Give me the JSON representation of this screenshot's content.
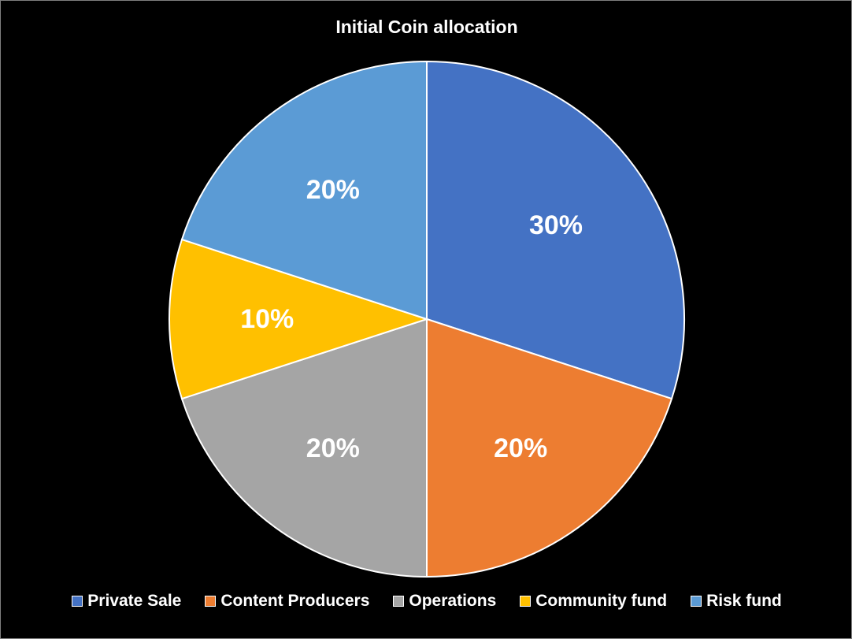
{
  "chart_data": {
    "type": "pie",
    "title": "Initial Coin allocation",
    "categories": [
      "Private Sale",
      "Content Producers",
      "Operations",
      "Community fund",
      "Risk fund"
    ],
    "values": [
      30,
      20,
      20,
      10,
      20
    ],
    "data_labels": [
      "30%",
      "20%",
      "20%",
      "10%",
      "20%"
    ],
    "colors": [
      "#4472C4",
      "#ED7D31",
      "#A5A5A5",
      "#FFC000",
      "#5B9BD5"
    ],
    "start_angle": "12 o'clock",
    "direction": "clockwise",
    "legend_position": "bottom"
  }
}
